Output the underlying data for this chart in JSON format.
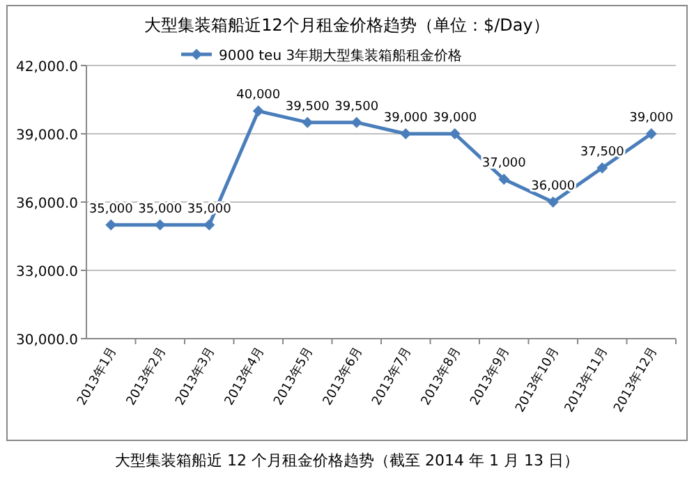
{
  "chart_data": {
    "type": "line",
    "title": "大型集装箱船近12个月租金价格趋势（单位：$/Day）",
    "categories": [
      "2013年1月",
      "2013年2月",
      "2013年3月",
      "2013年4月",
      "2013年5月",
      "2013年6月",
      "2013年7月",
      "2013年8月",
      "2013年9月",
      "2013年10月",
      "2013年11月",
      "2013年12月"
    ],
    "series": [
      {
        "name": "9000 teu 3年期大型集装箱船租金价格",
        "color": "#4a7ebb",
        "values": [
          35000,
          35000,
          35000,
          40000,
          39500,
          39500,
          39000,
          39000,
          37000,
          36000,
          37500,
          39000
        ],
        "value_labels": [
          "35,000",
          "35,000",
          "35,000",
          "40,000",
          "39,500",
          "39,500",
          "39,000",
          "39,000",
          "37,000",
          "36,000",
          "37,500",
          "39,000"
        ]
      }
    ],
    "ylim": [
      30000,
      42000
    ],
    "yticks": [
      {
        "value": 30000,
        "label": "30,000.0"
      },
      {
        "value": 33000,
        "label": "33,000.0"
      },
      {
        "value": 36000,
        "label": "36,000.0"
      },
      {
        "value": 39000,
        "label": "39,000.0"
      },
      {
        "value": 42000,
        "label": "42,000.0"
      }
    ],
    "grid": "y",
    "legend": "top",
    "marker": "diamond",
    "line_style": "solid",
    "annotations": [
      "大型集装箱船近 12 个月租金价格趋势（截至 2014 年 1 月 13 日）"
    ]
  }
}
